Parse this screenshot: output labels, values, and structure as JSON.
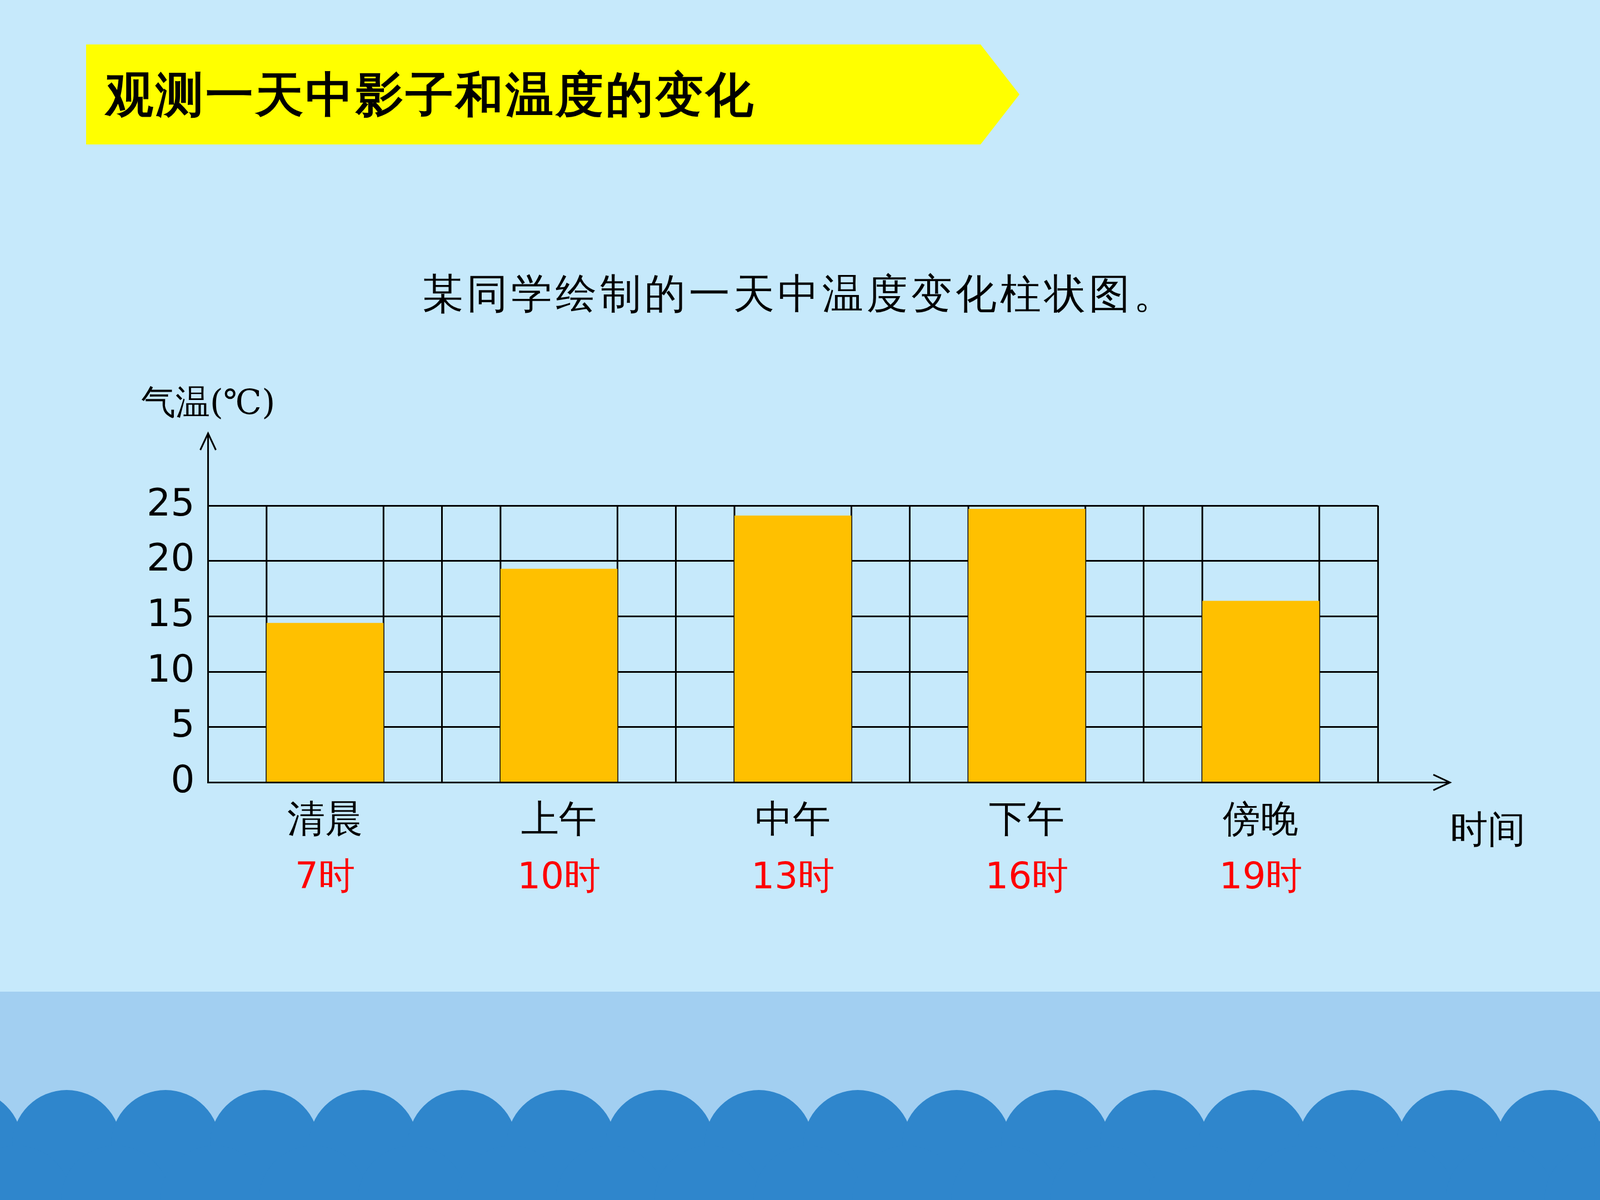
{
  "header": {
    "title": "观测一天中影子和温度的变化"
  },
  "chart_data": {
    "type": "bar",
    "title": "某同学绘制的一天中温度变化柱状图。",
    "y_label": "气温(℃)",
    "x_label": "时间",
    "categories": [
      "清晨",
      "上午",
      "中午",
      "下午",
      "傍晚"
    ],
    "category_times": [
      "7时",
      "10时",
      "13时",
      "16时",
      "19时"
    ],
    "values": [
      14.4,
      19.3,
      24.1,
      24.7,
      16.4
    ],
    "color": "#ffc000",
    "ylim": [
      0,
      25
    ],
    "yticks": [
      0,
      5,
      10,
      15,
      20,
      25
    ],
    "grid": true
  }
}
